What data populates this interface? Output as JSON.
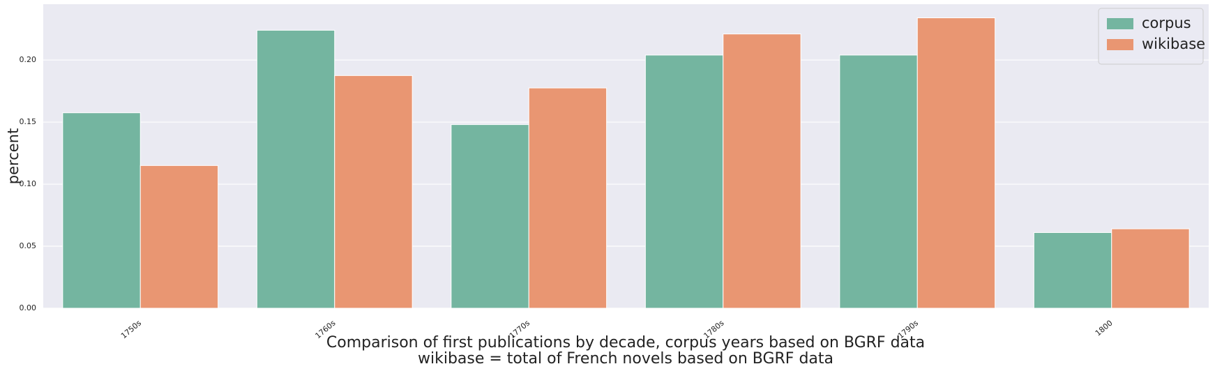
{
  "chart_data": {
    "type": "bar",
    "ylabel": "percent",
    "xlabel": [
      "Comparison of first publications by decade, corpus years based on BGRF data",
      "wikibase = total of French novels based on BGRF data"
    ],
    "categories": [
      "1750s",
      "1760s",
      "1770s",
      "1780s",
      "1790s",
      "1800"
    ],
    "series": [
      {
        "name": "corpus",
        "color": "#74b5a0",
        "values": [
          0.1575,
          0.224,
          0.148,
          0.204,
          0.204,
          0.061
        ]
      },
      {
        "name": "wikibase",
        "color": "#e99672",
        "values": [
          0.115,
          0.1875,
          0.1775,
          0.221,
          0.234,
          0.064
        ]
      }
    ],
    "ylim": [
      0,
      0.245
    ],
    "yticks": [
      {
        "value": 0,
        "label": "0.00"
      },
      {
        "value": 0.05,
        "label": "0.05"
      },
      {
        "value": 0.1,
        "label": "0.10"
      },
      {
        "value": 0.15,
        "label": "0.15"
      },
      {
        "value": 0.2,
        "label": "0.20"
      }
    ],
    "grid": true,
    "legend": "upper right"
  }
}
